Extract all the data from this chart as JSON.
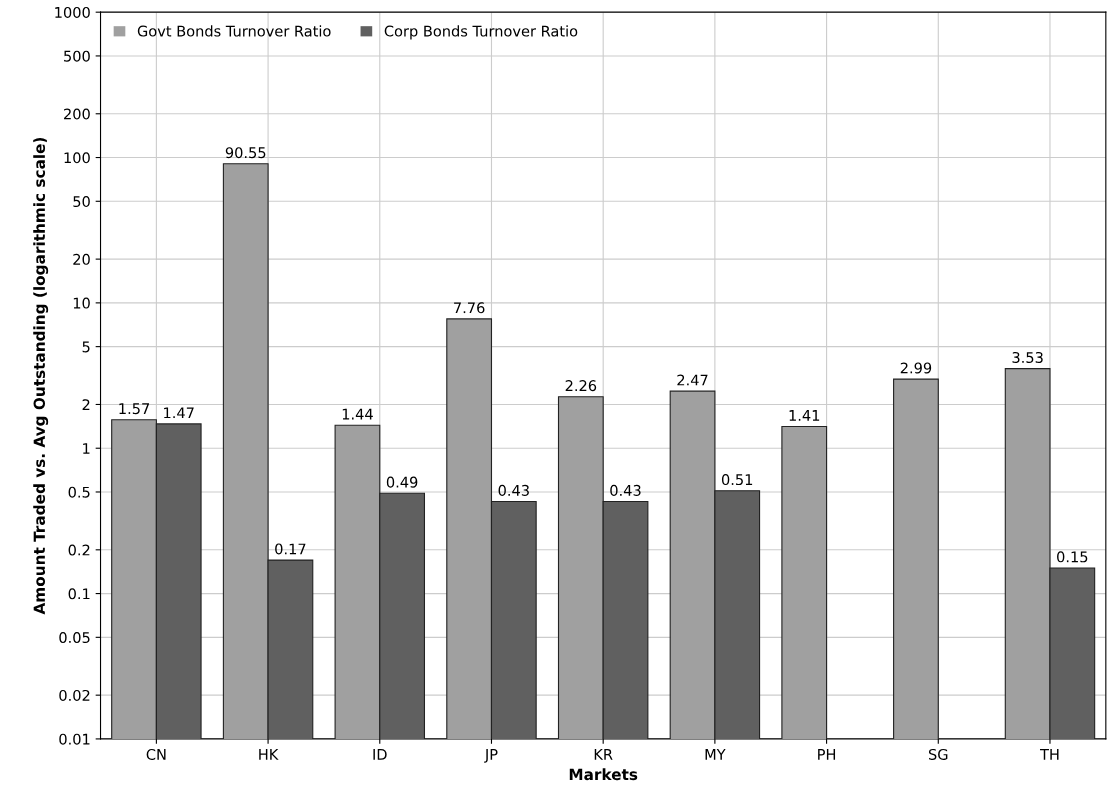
{
  "chart_data": {
    "type": "bar",
    "xlabel": "Markets",
    "ylabel": "Amount Traded vs. Avg Outstanding (logarithmic scale)",
    "categories": [
      "CN",
      "HK",
      "ID",
      "JP",
      "KR",
      "MY",
      "PH",
      "SG",
      "TH"
    ],
    "series": [
      {
        "name": "Govt Bonds Turnover Ratio",
        "color": "#a0a0a0",
        "values": [
          1.57,
          90.55,
          1.44,
          7.76,
          2.26,
          2.47,
          1.41,
          2.99,
          3.53
        ]
      },
      {
        "name": "Corp Bonds Turnover Ratio",
        "color": "#606060",
        "values": [
          1.47,
          0.17,
          0.49,
          0.43,
          0.43,
          0.51,
          null,
          null,
          0.15
        ]
      }
    ],
    "log": "y",
    "ylim": [
      0.01,
      1000
    ],
    "yticks": [
      0.01,
      0.02,
      0.05,
      0.1,
      0.2,
      0.5,
      1,
      2,
      5,
      10,
      20,
      50,
      100,
      200,
      500,
      1000
    ],
    "grid": true,
    "legend": "top left",
    "data_labels": true
  }
}
